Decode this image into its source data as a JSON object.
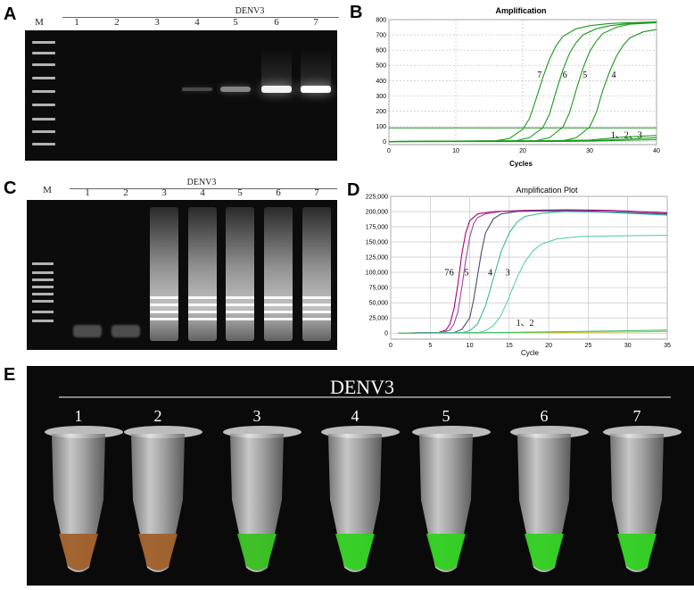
{
  "panels": {
    "a": "A",
    "b": "B",
    "c": "C",
    "d": "D",
    "e": "E"
  },
  "gel_a": {
    "title": "DENV3",
    "marker_label": "M",
    "lanes": [
      "1",
      "2",
      "3",
      "4",
      "5",
      "6",
      "7"
    ],
    "band_intensity": [
      0,
      0,
      0,
      0.25,
      0.5,
      0.95,
      1.0
    ]
  },
  "gel_c": {
    "title": "DENV3",
    "marker_label": "M",
    "lanes": [
      "1",
      "2",
      "3",
      "4",
      "5",
      "6",
      "7"
    ],
    "smear_present": [
      false,
      false,
      true,
      true,
      true,
      true,
      true
    ]
  },
  "chart_data": [
    {
      "type": "line",
      "title": "Amplification",
      "xlabel": "Cycles",
      "ylabel": "",
      "xlim": [
        0,
        40
      ],
      "ylim": [
        -20,
        800
      ],
      "xticks": [
        "0",
        "10",
        "20",
        "30",
        "40"
      ],
      "yticks": [
        "0",
        "100",
        "200",
        "300",
        "400",
        "500",
        "600",
        "700",
        "800"
      ],
      "threshold": 90,
      "grid": true,
      "annotations": [
        "7",
        "6",
        "5",
        "4",
        "1、2、3"
      ],
      "series": [
        {
          "name": "7",
          "x": [
            0,
            16,
            18,
            20,
            21,
            22,
            23,
            24,
            25,
            26,
            28,
            30,
            33,
            36,
            40
          ],
          "y": [
            0,
            5,
            20,
            80,
            150,
            280,
            420,
            540,
            630,
            690,
            740,
            760,
            775,
            780,
            785
          ]
        },
        {
          "name": "6",
          "x": [
            0,
            19,
            21,
            23,
            24,
            25,
            26,
            27,
            28,
            29,
            31,
            33,
            36,
            40
          ],
          "y": [
            0,
            5,
            25,
            90,
            180,
            330,
            470,
            580,
            650,
            700,
            740,
            760,
            775,
            785
          ]
        },
        {
          "name": "5",
          "x": [
            0,
            22,
            24,
            26,
            27,
            28,
            29,
            30,
            31,
            32,
            34,
            36,
            40
          ],
          "y": [
            0,
            5,
            25,
            95,
            190,
            340,
            480,
            590,
            660,
            710,
            750,
            770,
            780
          ]
        },
        {
          "name": "4",
          "x": [
            0,
            26,
            28,
            30,
            31,
            32,
            33,
            34,
            35,
            36,
            38,
            40
          ],
          "y": [
            0,
            5,
            25,
            95,
            190,
            340,
            460,
            560,
            630,
            680,
            720,
            735
          ]
        },
        {
          "name": "1",
          "x": [
            0,
            20,
            30,
            35,
            40
          ],
          "y": [
            0,
            2,
            10,
            30,
            40
          ]
        },
        {
          "name": "2",
          "x": [
            0,
            20,
            30,
            35,
            40
          ],
          "y": [
            0,
            1,
            5,
            15,
            25
          ]
        },
        {
          "name": "3",
          "x": [
            0,
            20,
            30,
            35,
            40
          ],
          "y": [
            0,
            0,
            3,
            8,
            12
          ]
        }
      ]
    },
    {
      "type": "line",
      "title": "Amplification Plot",
      "xlabel": "Cycle",
      "ylabel": "",
      "xlim": [
        0,
        35
      ],
      "ylim": [
        -10000,
        225000
      ],
      "xticks": [
        "0",
        "5",
        "10",
        "15",
        "20",
        "25",
        "30",
        "35"
      ],
      "yticks": [
        "0",
        "25,000",
        "50,000",
        "75,000",
        "100,000",
        "125,000",
        "150,000",
        "175,000",
        "200,000",
        "225,000"
      ],
      "grid": true,
      "annotations": [
        "7",
        "6",
        "5",
        "4",
        "3",
        "1、2"
      ],
      "series": [
        {
          "name": "7",
          "color": "#b0007a",
          "x": [
            1,
            6,
            7,
            7.5,
            8,
            8.5,
            9,
            9.5,
            10,
            11,
            13,
            17,
            22,
            28,
            35
          ],
          "y": [
            0,
            800,
            5000,
            15000,
            40000,
            80000,
            130000,
            165000,
            185000,
            196000,
            200000,
            202000,
            203000,
            202000,
            198000
          ]
        },
        {
          "name": "6",
          "color": "#9a4a9a",
          "x": [
            1,
            6.5,
            7.5,
            8,
            8.5,
            9,
            9.5,
            10,
            10.5,
            11,
            12,
            14,
            18,
            24,
            35
          ],
          "y": [
            0,
            800,
            5000,
            15000,
            35000,
            75000,
            120000,
            158000,
            180000,
            190000,
            196000,
            200000,
            201000,
            200000,
            196000
          ]
        },
        {
          "name": "5",
          "color": "#4a4a7a",
          "x": [
            1,
            8,
            9,
            10,
            10.5,
            11,
            11.5,
            12,
            13,
            14,
            16,
            20,
            25,
            35
          ],
          "y": [
            0,
            800,
            6000,
            25000,
            55000,
            95000,
            135000,
            165000,
            188000,
            196000,
            200000,
            202000,
            201000,
            196000
          ]
        },
        {
          "name": "4",
          "color": "#3cb89a",
          "x": [
            1,
            9,
            10,
            11,
            12,
            13,
            14,
            15,
            16,
            17,
            19,
            22,
            27,
            35
          ],
          "y": [
            0,
            800,
            4000,
            15000,
            45000,
            90000,
            135000,
            165000,
            183000,
            192000,
            197000,
            200000,
            199000,
            194000
          ]
        },
        {
          "name": "3",
          "color": "#5fd0a0",
          "x": [
            1,
            11,
            12,
            13,
            14,
            15,
            16,
            17,
            18,
            19,
            21,
            24,
            28,
            35
          ],
          "y": [
            0,
            800,
            4000,
            12000,
            30000,
            60000,
            92000,
            118000,
            135000,
            146000,
            155000,
            159000,
            160000,
            161000
          ]
        },
        {
          "name": "1",
          "color": "#c8c020",
          "x": [
            1,
            10,
            20,
            30,
            35
          ],
          "y": [
            0,
            200,
            800,
            2000,
            2800
          ]
        },
        {
          "name": "2",
          "color": "#40c070",
          "x": [
            1,
            10,
            20,
            30,
            35
          ],
          "y": [
            0,
            500,
            2000,
            4000,
            5000
          ]
        }
      ]
    }
  ],
  "tubes": {
    "title": "DENV3",
    "labels": [
      "1",
      "2",
      "3",
      "4",
      "5",
      "6",
      "7"
    ],
    "colors": [
      "#a0602a",
      "#a0602a",
      "#38c020",
      "#30d020",
      "#30d020",
      "#30d020",
      "#30d020"
    ]
  }
}
